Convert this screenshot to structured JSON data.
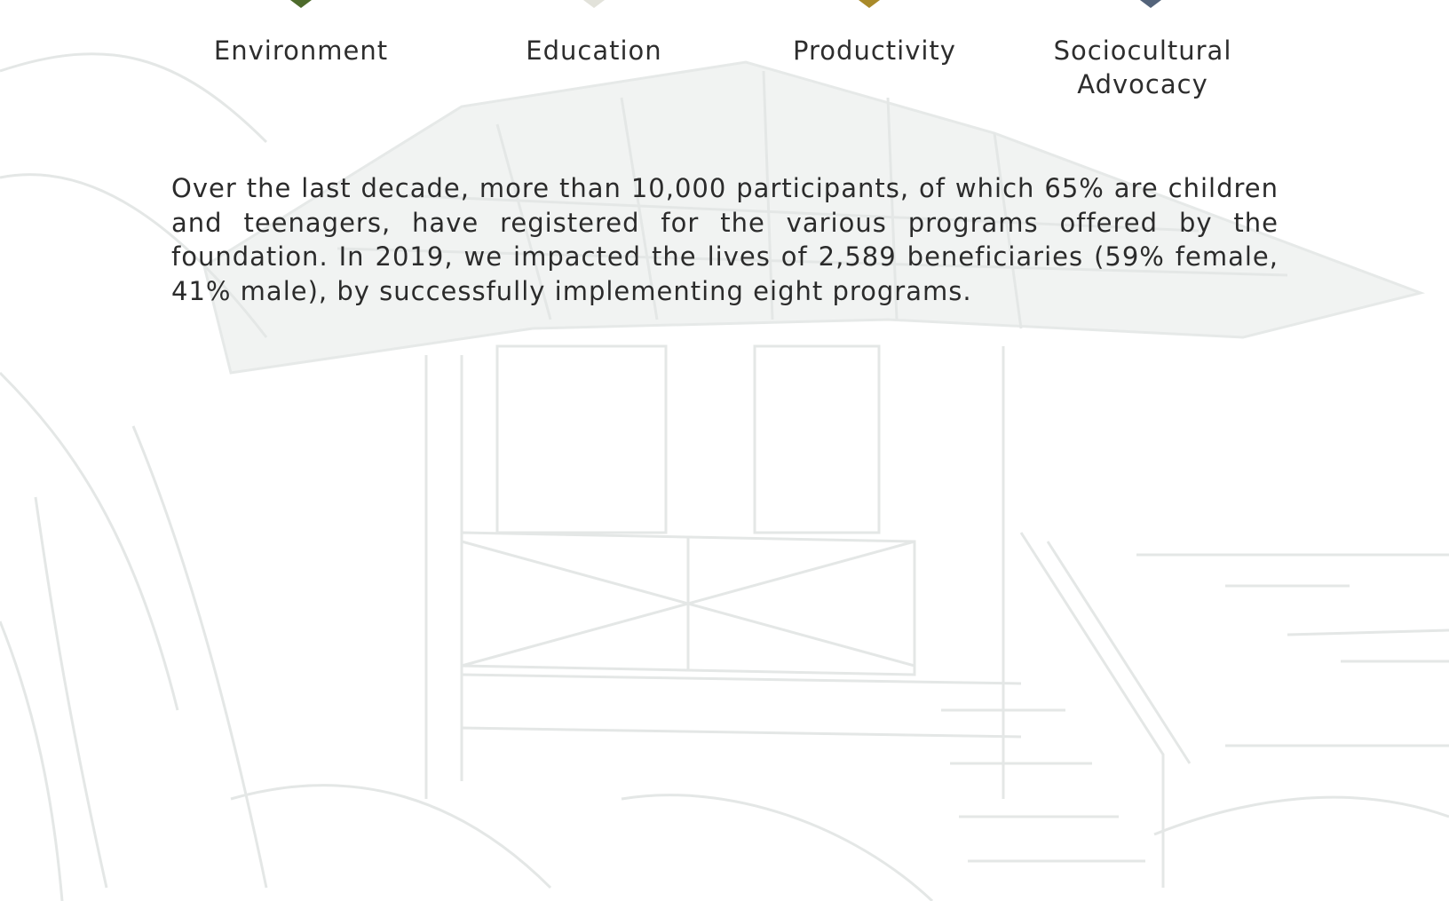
{
  "focus_areas": [
    "Environment",
    "Education",
    "Productivity",
    "Sociocultural Advocacy"
  ],
  "paragraph": "Over the last decade, more than 10,000 participants, of which 65% are children and teenagers, have registered for the various programs offered by the foundation. In 2019, we impacted the lives of 2,589 beneficiaries (59% female, 41% male), by successfully implementing eight programs."
}
